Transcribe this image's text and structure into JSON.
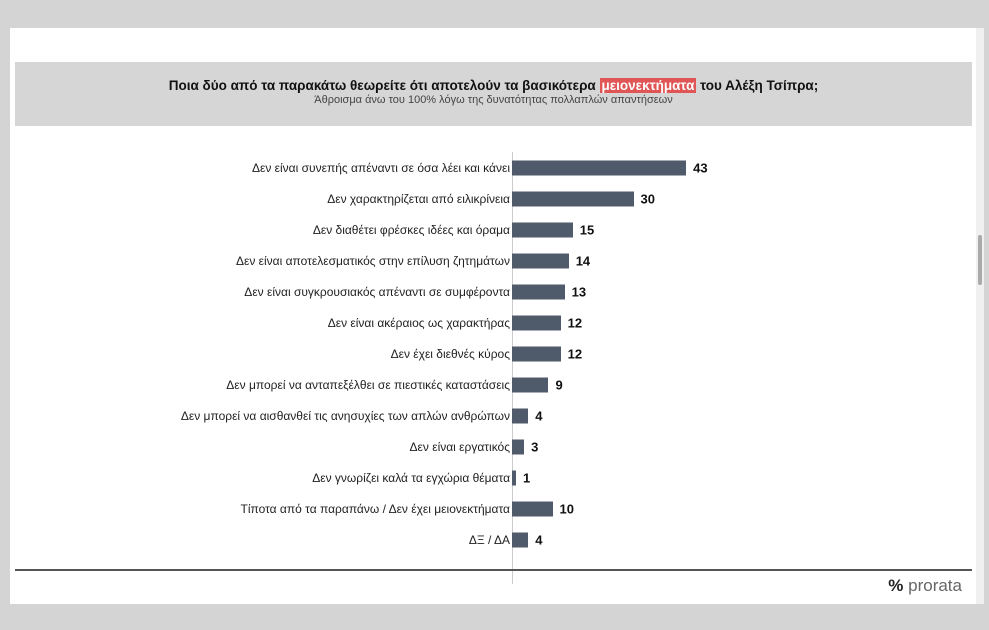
{
  "chart_data": {
    "type": "bar",
    "title": "Ποια δύο από τα παρακάτω θεωρείτε ότι αποτελούν τα βασικότερα",
    "title_highlight": "μειονεκτήματα",
    "title_end": "του Αλέξη Τσίπρα;",
    "subtitle": "Άθροισμα άνω του 100% λόγω της δυνατότητας πολλαπλών απαντήσεων",
    "categories": [
      "Δεν είναι συνεπής απέναντι σε όσα λέει και κάνει",
      "Δεν χαρακτηρίζεται από ειλικρίνεια",
      "Δεν διαθέτει φρέσκες ιδέες και όραμα",
      "Δεν είναι αποτελεσματικός στην επίλυση ζητημάτων",
      "Δεν είναι συγκρουσιακός απέναντι σε συμφέροντα",
      "Δεν είναι ακέραιος ως χαρακτήρας",
      "Δεν έχει διεθνές κύρος",
      "Δεν μπορεί να ανταπεξέλθει σε πιεστικές καταστάσεις",
      "Δεν μπορεί να αισθανθεί τις ανησυχίες των απλών ανθρώπων",
      "Δεν είναι εργατικός",
      "Δεν γνωρίζει καλά τα εγχώρια θέματα",
      "Τίποτα από τα παραπάνω / Δεν έχει μειονεκτήματα",
      "ΔΞ / ΔΑ"
    ],
    "values": [
      43,
      30,
      15,
      14,
      13,
      12,
      12,
      9,
      4,
      3,
      1,
      10,
      4
    ],
    "xlim": [
      0,
      100
    ],
    "bar_color": "#4f5a6b",
    "highlight_color": "#e05555"
  },
  "logo": {
    "symbol": "%",
    "text": "prorata"
  }
}
